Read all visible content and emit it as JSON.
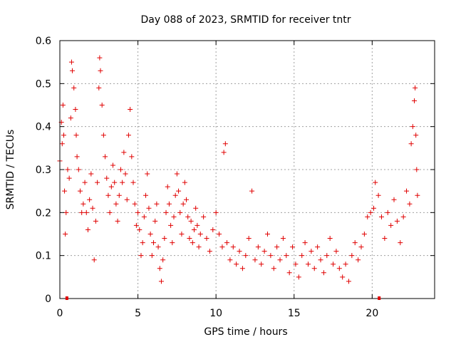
{
  "chart_data": {
    "type": "scatter",
    "title": "Day 088 of 2023, SRMTID for receiver tntr",
    "xlabel": "GPS time / hours",
    "ylabel": "SRMTID / TECUs",
    "xlim": [
      0,
      24
    ],
    "ylim": [
      0,
      0.6
    ],
    "x_ticks": [
      0,
      5,
      10,
      15,
      20
    ],
    "x_tick_labels": [
      "0",
      "5",
      "10",
      "15",
      "20"
    ],
    "y_ticks": [
      0,
      0.1,
      0.2,
      0.3,
      0.4,
      0.5,
      0.6
    ],
    "y_tick_labels": [
      "0",
      "0.1",
      "0.2",
      "0.3",
      "0.4",
      "0.5",
      "0.6"
    ],
    "grid": true,
    "marker": "plus",
    "series_color": "#e00000",
    "series": [
      {
        "name": "SRMTID",
        "points": [
          [
            0.0,
            0.32
          ],
          [
            0.1,
            0.41
          ],
          [
            0.15,
            0.36
          ],
          [
            0.2,
            0.45
          ],
          [
            0.25,
            0.38
          ],
          [
            0.3,
            0.25
          ],
          [
            0.35,
            0.15
          ],
          [
            0.4,
            0.2
          ],
          [
            0.5,
            0.3
          ],
          [
            0.6,
            0.28
          ],
          [
            0.7,
            0.42
          ],
          [
            0.75,
            0.55
          ],
          [
            0.8,
            0.53
          ],
          [
            0.9,
            0.49
          ],
          [
            1.0,
            0.44
          ],
          [
            1.05,
            0.38
          ],
          [
            1.1,
            0.33
          ],
          [
            1.2,
            0.3
          ],
          [
            1.3,
            0.25
          ],
          [
            1.4,
            0.2
          ],
          [
            1.5,
            0.22
          ],
          [
            1.6,
            0.27
          ],
          [
            1.7,
            0.2
          ],
          [
            1.8,
            0.16
          ],
          [
            1.9,
            0.23
          ],
          [
            2.0,
            0.29
          ],
          [
            2.1,
            0.21
          ],
          [
            2.2,
            0.09
          ],
          [
            2.3,
            0.18
          ],
          [
            2.4,
            0.27
          ],
          [
            2.5,
            0.49
          ],
          [
            2.55,
            0.56
          ],
          [
            2.6,
            0.53
          ],
          [
            2.7,
            0.45
          ],
          [
            2.8,
            0.38
          ],
          [
            2.9,
            0.33
          ],
          [
            3.0,
            0.28
          ],
          [
            3.1,
            0.24
          ],
          [
            3.2,
            0.2
          ],
          [
            3.3,
            0.26
          ],
          [
            3.4,
            0.31
          ],
          [
            3.5,
            0.27
          ],
          [
            3.6,
            0.22
          ],
          [
            3.7,
            0.18
          ],
          [
            3.8,
            0.24
          ],
          [
            3.9,
            0.3
          ],
          [
            4.0,
            0.27
          ],
          [
            4.1,
            0.34
          ],
          [
            4.2,
            0.29
          ],
          [
            4.3,
            0.23
          ],
          [
            4.4,
            0.38
          ],
          [
            4.5,
            0.44
          ],
          [
            4.6,
            0.33
          ],
          [
            4.7,
            0.27
          ],
          [
            4.8,
            0.22
          ],
          [
            4.9,
            0.17
          ],
          [
            5.0,
            0.2
          ],
          [
            5.1,
            0.16
          ],
          [
            5.2,
            0.1
          ],
          [
            5.3,
            0.13
          ],
          [
            5.4,
            0.19
          ],
          [
            5.5,
            0.24
          ],
          [
            5.6,
            0.29
          ],
          [
            5.7,
            0.21
          ],
          [
            5.8,
            0.15
          ],
          [
            5.9,
            0.1
          ],
          [
            6.0,
            0.13
          ],
          [
            6.1,
            0.18
          ],
          [
            6.2,
            0.22
          ],
          [
            6.3,
            0.12
          ],
          [
            6.4,
            0.07
          ],
          [
            6.5,
            0.04
          ],
          [
            6.6,
            0.09
          ],
          [
            6.7,
            0.14
          ],
          [
            6.8,
            0.2
          ],
          [
            6.9,
            0.26
          ],
          [
            7.0,
            0.22
          ],
          [
            7.1,
            0.17
          ],
          [
            7.2,
            0.13
          ],
          [
            7.3,
            0.19
          ],
          [
            7.4,
            0.24
          ],
          [
            7.5,
            0.29
          ],
          [
            7.6,
            0.25
          ],
          [
            7.7,
            0.2
          ],
          [
            7.8,
            0.15
          ],
          [
            7.9,
            0.22
          ],
          [
            8.0,
            0.27
          ],
          [
            8.1,
            0.23
          ],
          [
            8.2,
            0.19
          ],
          [
            8.3,
            0.14
          ],
          [
            8.4,
            0.18
          ],
          [
            8.5,
            0.13
          ],
          [
            8.6,
            0.16
          ],
          [
            8.7,
            0.21
          ],
          [
            8.8,
            0.17
          ],
          [
            8.9,
            0.12
          ],
          [
            9.0,
            0.15
          ],
          [
            9.2,
            0.19
          ],
          [
            9.4,
            0.14
          ],
          [
            9.6,
            0.11
          ],
          [
            9.8,
            0.16
          ],
          [
            10.0,
            0.2
          ],
          [
            10.2,
            0.15
          ],
          [
            10.4,
            0.12
          ],
          [
            10.5,
            0.34
          ],
          [
            10.6,
            0.36
          ],
          [
            10.7,
            0.13
          ],
          [
            10.9,
            0.09
          ],
          [
            11.1,
            0.12
          ],
          [
            11.3,
            0.08
          ],
          [
            11.5,
            0.11
          ],
          [
            11.7,
            0.07
          ],
          [
            11.9,
            0.1
          ],
          [
            12.1,
            0.14
          ],
          [
            12.3,
            0.25
          ],
          [
            12.5,
            0.09
          ],
          [
            12.7,
            0.12
          ],
          [
            12.9,
            0.08
          ],
          [
            13.1,
            0.11
          ],
          [
            13.3,
            0.15
          ],
          [
            13.5,
            0.1
          ],
          [
            13.7,
            0.07
          ],
          [
            13.9,
            0.12
          ],
          [
            14.1,
            0.09
          ],
          [
            14.3,
            0.14
          ],
          [
            14.5,
            0.1
          ],
          [
            14.7,
            0.06
          ],
          [
            14.9,
            0.12
          ],
          [
            15.1,
            0.08
          ],
          [
            15.3,
            0.05
          ],
          [
            15.5,
            0.1
          ],
          [
            15.7,
            0.13
          ],
          [
            15.9,
            0.08
          ],
          [
            16.1,
            0.11
          ],
          [
            16.3,
            0.07
          ],
          [
            16.5,
            0.12
          ],
          [
            16.7,
            0.09
          ],
          [
            16.9,
            0.06
          ],
          [
            17.1,
            0.1
          ],
          [
            17.3,
            0.14
          ],
          [
            17.5,
            0.08
          ],
          [
            17.7,
            0.11
          ],
          [
            17.9,
            0.07
          ],
          [
            18.1,
            0.05
          ],
          [
            18.3,
            0.08
          ],
          [
            18.5,
            0.04
          ],
          [
            18.7,
            0.1
          ],
          [
            18.9,
            0.13
          ],
          [
            19.1,
            0.09
          ],
          [
            19.3,
            0.12
          ],
          [
            19.5,
            0.15
          ],
          [
            19.7,
            0.19
          ],
          [
            19.9,
            0.2
          ],
          [
            20.1,
            0.21
          ],
          [
            20.2,
            0.27
          ],
          [
            20.4,
            0.24
          ],
          [
            20.6,
            0.19
          ],
          [
            20.8,
            0.14
          ],
          [
            21.0,
            0.2
          ],
          [
            21.2,
            0.17
          ],
          [
            21.4,
            0.23
          ],
          [
            21.6,
            0.18
          ],
          [
            21.8,
            0.13
          ],
          [
            22.0,
            0.19
          ],
          [
            22.2,
            0.25
          ],
          [
            22.4,
            0.22
          ],
          [
            22.5,
            0.36
          ],
          [
            22.6,
            0.4
          ],
          [
            22.7,
            0.46
          ],
          [
            22.75,
            0.49
          ],
          [
            22.8,
            0.38
          ],
          [
            22.85,
            0.3
          ],
          [
            22.9,
            0.24
          ]
        ]
      }
    ],
    "axis_markers": [
      {
        "label": "",
        "x": 0.45
      },
      {
        "label": "",
        "x": 20.45
      }
    ]
  }
}
